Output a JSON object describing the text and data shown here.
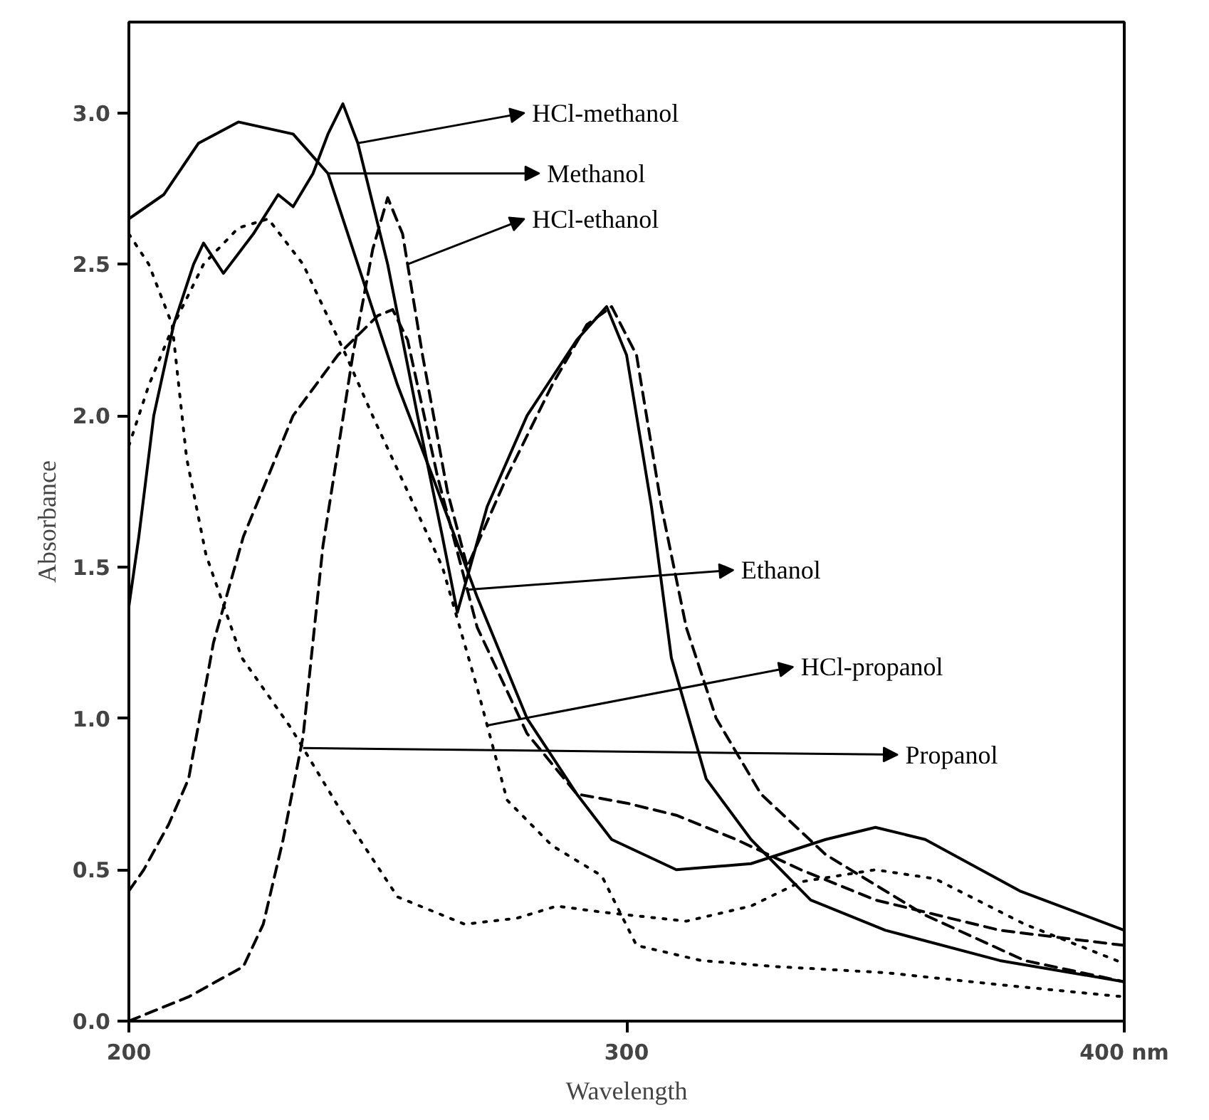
{
  "chart_data": {
    "type": "line",
    "xlabel": "Wavelength",
    "ylabel": "Absorbance",
    "xlim": [
      200,
      400
    ],
    "ylim": [
      0,
      3.3
    ],
    "xticks": [
      200,
      300,
      {
        "value": 400,
        "label": "400 nm"
      }
    ],
    "yticks": [
      {
        "value": 0,
        "label": "0.0"
      },
      0.5,
      {
        "value": 1,
        "label": "1.0"
      },
      1.5,
      {
        "value": 2,
        "label": "2.0"
      },
      2.5,
      {
        "value": 3,
        "label": "3.0"
      }
    ],
    "grid": false,
    "legend": "right",
    "series": [
      {
        "name": "HCl-methanol",
        "color": "#000000",
        "line_style": "solid",
        "x": [
          200,
          202,
          205,
          209,
          213,
          215,
          219,
          225,
          230,
          233,
          237,
          240,
          243,
          246,
          252,
          258,
          263,
          266,
          272,
          280,
          290,
          296,
          300,
          305,
          309,
          316,
          325,
          337,
          352,
          375,
          400
        ],
        "values": [
          1.37,
          1.6,
          2.0,
          2.3,
          2.5,
          2.57,
          2.47,
          2.6,
          2.73,
          2.69,
          2.8,
          2.93,
          3.03,
          2.9,
          2.5,
          2.0,
          1.6,
          1.35,
          1.7,
          2.0,
          2.25,
          2.36,
          2.2,
          1.7,
          1.2,
          0.8,
          0.6,
          0.4,
          0.3,
          0.2,
          0.13
        ]
      },
      {
        "name": "Methanol",
        "color": "#000000",
        "line_style": "solid",
        "x": [
          200,
          207,
          214,
          222,
          233,
          240,
          247,
          254,
          261,
          270,
          280,
          290,
          297,
          310,
          325,
          340,
          350,
          360,
          379,
          400
        ],
        "values": [
          2.65,
          2.73,
          2.9,
          2.97,
          2.93,
          2.8,
          2.45,
          2.1,
          1.8,
          1.4,
          1.0,
          0.75,
          0.6,
          0.5,
          0.52,
          0.6,
          0.64,
          0.6,
          0.43,
          0.3
        ]
      },
      {
        "name": "HCl-ethanol",
        "color": "#000000",
        "line_style": "dashed",
        "x": [
          200,
          212,
          223,
          227,
          231,
          235,
          239,
          245,
          249,
          252,
          255,
          259,
          264,
          268,
          276,
          285,
          292,
          297,
          302,
          307,
          312,
          318,
          327,
          340,
          360,
          380,
          400
        ],
        "values": [
          0,
          0.08,
          0.18,
          0.32,
          0.6,
          0.94,
          1.57,
          2.2,
          2.55,
          2.72,
          2.6,
          2.2,
          1.75,
          1.5,
          1.8,
          2.1,
          2.3,
          2.36,
          2.2,
          1.7,
          1.3,
          1.0,
          0.75,
          0.55,
          0.35,
          0.2,
          0.13
        ]
      },
      {
        "name": "Ethanol",
        "color": "#000000",
        "line_style": "dashed",
        "x": [
          200,
          203,
          208,
          212,
          217,
          223,
          233,
          242,
          250,
          253,
          256,
          262,
          270,
          280,
          290,
          300,
          310,
          322,
          335,
          350,
          375,
          400
        ],
        "values": [
          0.43,
          0.5,
          0.65,
          0.8,
          1.25,
          1.6,
          2.0,
          2.2,
          2.33,
          2.35,
          2.25,
          1.8,
          1.3,
          0.95,
          0.75,
          0.72,
          0.68,
          0.6,
          0.5,
          0.4,
          0.3,
          0.25
        ]
      },
      {
        "name": "HCl-propanol",
        "color": "#000000",
        "line_style": "dotted",
        "x": [
          200,
          204,
          209,
          215,
          222,
          228,
          235,
          243.6,
          249.5,
          256,
          263,
          270,
          276,
          285,
          295,
          302,
          315,
          330,
          352,
          375,
          400
        ],
        "values": [
          1.9,
          2.1,
          2.3,
          2.5,
          2.62,
          2.65,
          2.5,
          2.2,
          1.98,
          1.75,
          1.5,
          1.1,
          0.73,
          0.58,
          0.48,
          0.25,
          0.2,
          0.18,
          0.16,
          0.12,
          0.08
        ]
      },
      {
        "name": "Propanol",
        "color": "#000000",
        "line_style": "dotted",
        "x": [
          200,
          204,
          208.7,
          211.6,
          215.5,
          222.7,
          232.5,
          242.4,
          254,
          267.5,
          278,
          286,
          295,
          312,
          325,
          335,
          350,
          362,
          380,
          400
        ],
        "values": [
          2.6,
          2.5,
          2.3,
          1.86,
          1.54,
          1.2,
          0.97,
          0.7,
          0.41,
          0.32,
          0.34,
          0.38,
          0.36,
          0.33,
          0.38,
          0.46,
          0.5,
          0.47,
          0.32,
          0.19
        ]
      }
    ]
  }
}
